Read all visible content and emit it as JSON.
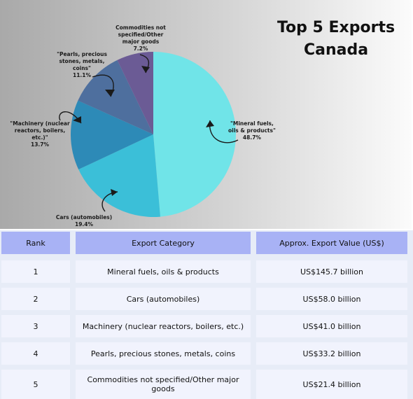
{
  "title": [
    "Top 5 Exports",
    "Canada"
  ],
  "chart_data": {
    "type": "pie",
    "title": "Top 5 Exports Canada",
    "slices": [
      {
        "label": "\"Mineral fuels, oils & products\"",
        "value": 48.7,
        "color": "#70e4e8"
      },
      {
        "label": "Cars (automobiles)",
        "value": 19.4,
        "color": "#3bbfd8"
      },
      {
        "label": "\"Machinery (nuclear reactors, boilers, etc.)\"",
        "value": 13.7,
        "color": "#2d8ab7"
      },
      {
        "label": "\"Pearls, precious stones, metals, coins\"",
        "value": 11.1,
        "color": "#4e6f9e"
      },
      {
        "label": "Commodities not specified/Other major goods",
        "value": 7.2,
        "color": "#6b5b95"
      }
    ],
    "value_labels": [
      "48.7%",
      "19.4%",
      "13.7%",
      "11.1%",
      "7.2%"
    ],
    "slice_label_lines": [
      [
        "\"Mineral fuels,",
        "oils & products\""
      ],
      [
        "Cars (automobiles)"
      ],
      [
        "\"Machinery (nuclear",
        "reactors, boilers,",
        "etc.)\""
      ],
      [
        "\"Pearls, precious",
        "stones, metals,",
        "coins\""
      ],
      [
        "Commodities not",
        "specified/Other",
        "major goods"
      ]
    ]
  },
  "table": {
    "headers": [
      "Rank",
      "Export Category",
      "Approx. Export Value (US$)"
    ],
    "rows": [
      [
        "1",
        "Mineral fuels, oils & products",
        "US$145.7 billion"
      ],
      [
        "2",
        "Cars (automobiles)",
        "US$58.0 billion"
      ],
      [
        "3",
        "Machinery (nuclear reactors, boilers, etc.)",
        "US$41.0 billion"
      ],
      [
        "4",
        "Pearls, precious stones, metals, coins",
        "US$33.2 billion"
      ],
      [
        "5",
        "Commodities not specified/Other major goods",
        "US$21.4 billion"
      ]
    ]
  }
}
